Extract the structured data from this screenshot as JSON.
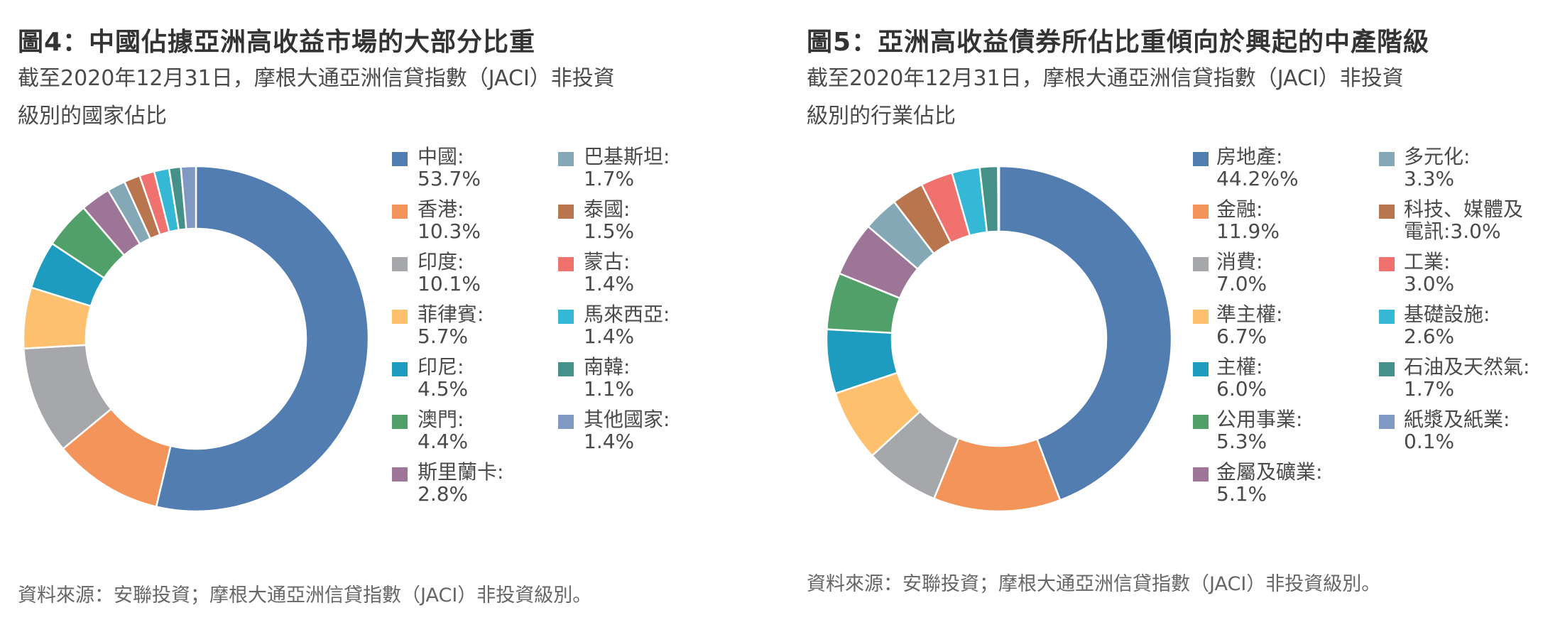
{
  "chart_data": [
    {
      "type": "pie",
      "title": "圖4：中國佔據亞洲高收益市場的大部分比重",
      "subtitle_lines": [
        "截至2020年12月31日，摩根大通亞洲信貸指數（JACI）非投資",
        "級別的國家佔比"
      ],
      "source": "資料來源：安聯投資；摩根大通亞洲信貸指數（JACI）非投資級別。",
      "donut": true,
      "legend_placement": "right",
      "slices": [
        {
          "label": "中國:",
          "value_text": "53.7%",
          "value": 53.7,
          "color": "#527DB0"
        },
        {
          "label": "香港:",
          "value_text": "10.3%",
          "value": 10.3,
          "color": "#F3955B"
        },
        {
          "label": "印度:",
          "value_text": "10.1%",
          "value": 10.1,
          "color": "#A6A7AB"
        },
        {
          "label": "菲律賓:",
          "value_text": "5.7%",
          "value": 5.7,
          "color": "#FDC06F"
        },
        {
          "label": "印尼:",
          "value_text": "4.5%",
          "value": 4.5,
          "color": "#1D9CC0"
        },
        {
          "label": "澳門:",
          "value_text": "4.4%",
          "value": 4.4,
          "color": "#51A06A"
        },
        {
          "label": "斯里蘭卡:",
          "value_text": "2.8%",
          "value": 2.8,
          "color": "#9D7697"
        },
        {
          "label": "巴基斯坦:",
          "value_text": "1.7%",
          "value": 1.7,
          "color": "#84A8B5"
        },
        {
          "label": "泰國:",
          "value_text": "1.5%",
          "value": 1.5,
          "color": "#B9754E"
        },
        {
          "label": "蒙古:",
          "value_text": "1.4%",
          "value": 1.4,
          "color": "#F0716D"
        },
        {
          "label": "馬來西亞:",
          "value_text": "1.4%",
          "value": 1.4,
          "color": "#35B8D6"
        },
        {
          "label": "南韓:",
          "value_text": "1.1%",
          "value": 1.1,
          "color": "#45918A"
        },
        {
          "label": "其他國家:",
          "value_text": "1.4%",
          "value": 1.4,
          "color": "#7F99C2"
        }
      ]
    },
    {
      "type": "pie",
      "title": "圖5：亞洲高收益債券所佔比重傾向於興起的中產階級",
      "subtitle_lines": [
        "截至2020年12月31日，摩根大通亞洲信貸指數（JACI）非投資",
        "級別的行業佔比"
      ],
      "source": "資料來源：安聯投資；摩根大通亞洲信貸指數（JACI）非投資級別。",
      "donut": true,
      "legend_placement": "right",
      "slices": [
        {
          "label": "房地產:",
          "value_text": "44.2%%",
          "value": 44.2,
          "color": "#527DB0"
        },
        {
          "label": "金融:",
          "value_text": "11.9%",
          "value": 11.9,
          "color": "#F3955B"
        },
        {
          "label": "消費:",
          "value_text": "7.0%",
          "value": 7.0,
          "color": "#A6A7AB"
        },
        {
          "label": "準主權:",
          "value_text": "6.7%",
          "value": 6.7,
          "color": "#FDC06F"
        },
        {
          "label": "主權:",
          "value_text": "6.0%",
          "value": 6.0,
          "color": "#1D9CC0"
        },
        {
          "label": "公用事業:",
          "value_text": "5.3%",
          "value": 5.3,
          "color": "#51A06A"
        },
        {
          "label": "金屬及礦業:",
          "value_text": "5.1%",
          "value": 5.1,
          "color": "#9D7697"
        },
        {
          "label": "多元化:",
          "value_text": "3.3%",
          "value": 3.3,
          "color": "#84A8B5"
        },
        {
          "label": "科技、媒體及",
          "value_text": "電訊:3.0%",
          "value": 3.0,
          "color": "#B9754E"
        },
        {
          "label": "工業:",
          "value_text": "3.0%",
          "value": 3.0,
          "color": "#F0716D"
        },
        {
          "label": "基礎設施:",
          "value_text": "2.6%",
          "value": 2.6,
          "color": "#35B8D6"
        },
        {
          "label": "石油及天然氣:",
          "value_text": "1.7%",
          "value": 1.7,
          "color": "#45918A"
        },
        {
          "label": "紙漿及紙業:",
          "value_text": "0.1%",
          "value": 0.1,
          "color": "#7F99C2"
        }
      ]
    }
  ]
}
